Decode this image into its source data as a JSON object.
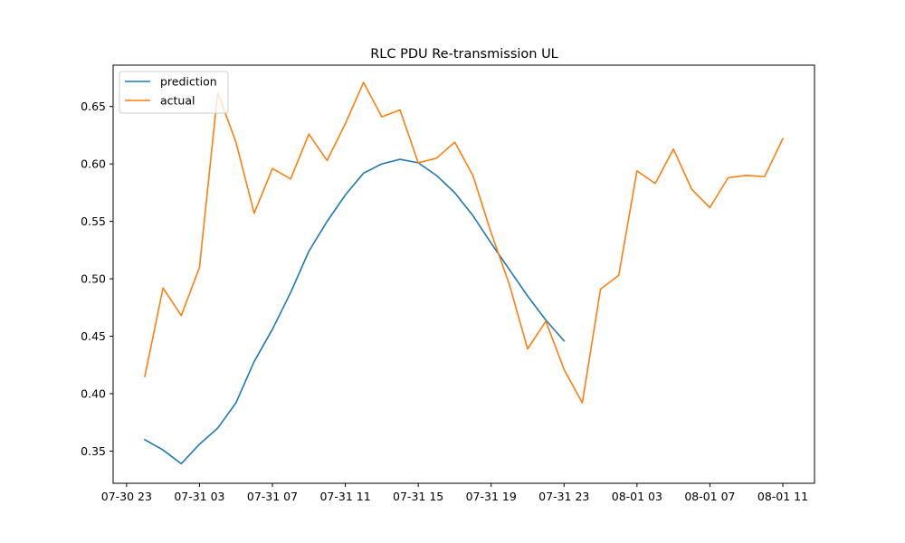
{
  "chart_data": {
    "type": "line",
    "title": "RLC PDU Re-transmission UL",
    "xlabel": "",
    "ylabel": "",
    "x_ticks": [
      "07-30 23",
      "07-31 03",
      "07-31 07",
      "07-31 11",
      "07-31 15",
      "07-31 19",
      "07-31 23",
      "08-01 03",
      "08-01 07",
      "08-01 11"
    ],
    "y_ticks": [
      "0.35",
      "0.40",
      "0.45",
      "0.50",
      "0.55",
      "0.60",
      "0.65"
    ],
    "ylim": [
      0.322,
      0.686
    ],
    "legend_position": "top-left",
    "grid": false,
    "series": [
      {
        "name": "prediction",
        "color": "#1f77b4",
        "x": [
          "07-31 00",
          "07-31 01",
          "07-31 02",
          "07-31 03",
          "07-31 04",
          "07-31 05",
          "07-31 06",
          "07-31 07",
          "07-31 08",
          "07-31 09",
          "07-31 10",
          "07-31 11",
          "07-31 12",
          "07-31 13",
          "07-31 14",
          "07-31 15",
          "07-31 16",
          "07-31 17",
          "07-31 18",
          "07-31 19",
          "07-31 20",
          "07-31 21",
          "07-31 22",
          "07-31 23"
        ],
        "values": [
          0.36,
          0.351,
          0.339,
          0.356,
          0.37,
          0.392,
          0.428,
          0.456,
          0.488,
          0.524,
          0.55,
          0.573,
          0.592,
          0.6,
          0.604,
          0.601,
          0.59,
          0.575,
          0.555,
          0.531,
          0.508,
          0.485,
          0.464,
          0.446
        ]
      },
      {
        "name": "actual",
        "color": "#ff7f0e",
        "x": [
          "07-31 00",
          "07-31 01",
          "07-31 02",
          "07-31 03",
          "07-31 04",
          "07-31 05",
          "07-31 06",
          "07-31 07",
          "07-31 08",
          "07-31 09",
          "07-31 10",
          "07-31 11",
          "07-31 12",
          "07-31 13",
          "07-31 14",
          "07-31 15",
          "07-31 16",
          "07-31 17",
          "07-31 18",
          "07-31 19",
          "07-31 20",
          "07-31 21",
          "07-31 22",
          "07-31 23",
          "08-01 00",
          "08-01 01",
          "08-01 02",
          "08-01 03",
          "08-01 04",
          "08-01 05",
          "08-01 06",
          "08-01 07",
          "08-01 08",
          "08-01 09",
          "08-01 10",
          "08-01 11"
        ],
        "values": [
          0.415,
          0.492,
          0.468,
          0.51,
          0.662,
          0.619,
          0.557,
          0.596,
          0.587,
          0.626,
          0.603,
          0.635,
          0.671,
          0.641,
          0.647,
          0.601,
          0.605,
          0.619,
          0.59,
          0.54,
          0.495,
          0.439,
          0.463,
          0.421,
          0.392,
          0.491,
          0.503,
          0.594,
          0.583,
          0.613,
          0.578,
          0.562,
          0.588,
          0.59,
          0.589,
          0.622
        ]
      }
    ]
  }
}
